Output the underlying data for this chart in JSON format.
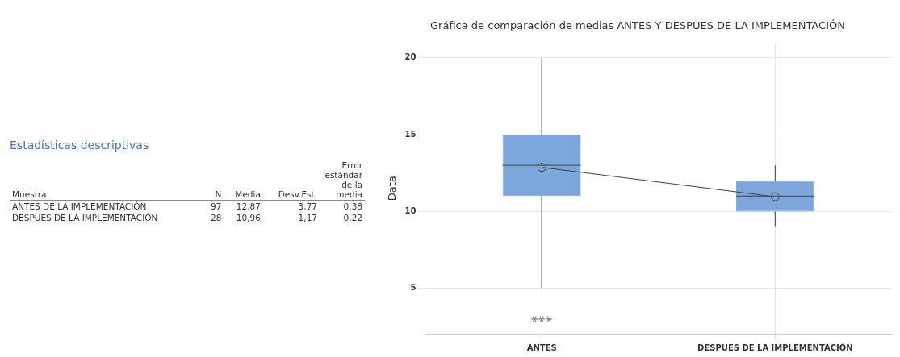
{
  "chart_data": {
    "type": "box",
    "title": "Gráfica de comparación de medias ANTES Y DESPUES DE LA IMPLEMENTACIÓN",
    "ylabel": "Data",
    "categories": [
      "ANTES",
      "DESPUES DE LA IMPLEMENTACIÓN"
    ],
    "ylim": [
      2,
      21
    ],
    "yticks": [
      5,
      10,
      15,
      20
    ],
    "grid": true,
    "marker": "circle",
    "series": [
      {
        "color": "#7ba7dc",
        "boxes": [
          {
            "low": 5,
            "q1": 11,
            "median": 13,
            "q3": 15,
            "high": 20,
            "outliers": [
              3,
              3,
              3
            ]
          },
          {
            "low": 9,
            "q1": 10,
            "median": 11,
            "q3": 12,
            "high": 13
          }
        ]
      },
      {
        "type": "line",
        "color": "#404040",
        "values": [
          12.87,
          10.96
        ]
      }
    ],
    "annotations": [
      "Estadísticas descriptivas",
      "Muestra",
      "N",
      "Media",
      "Desv.Est.",
      "Error estándar de la media",
      "ANTES DE LA IMPLEMENTACIÓN",
      "97",
      "12,87",
      "3,77",
      "0,38",
      "DESPUES DE LA IMPLEMENTACIÓN",
      "28",
      "10,96",
      "1,17",
      "0,22"
    ]
  }
}
